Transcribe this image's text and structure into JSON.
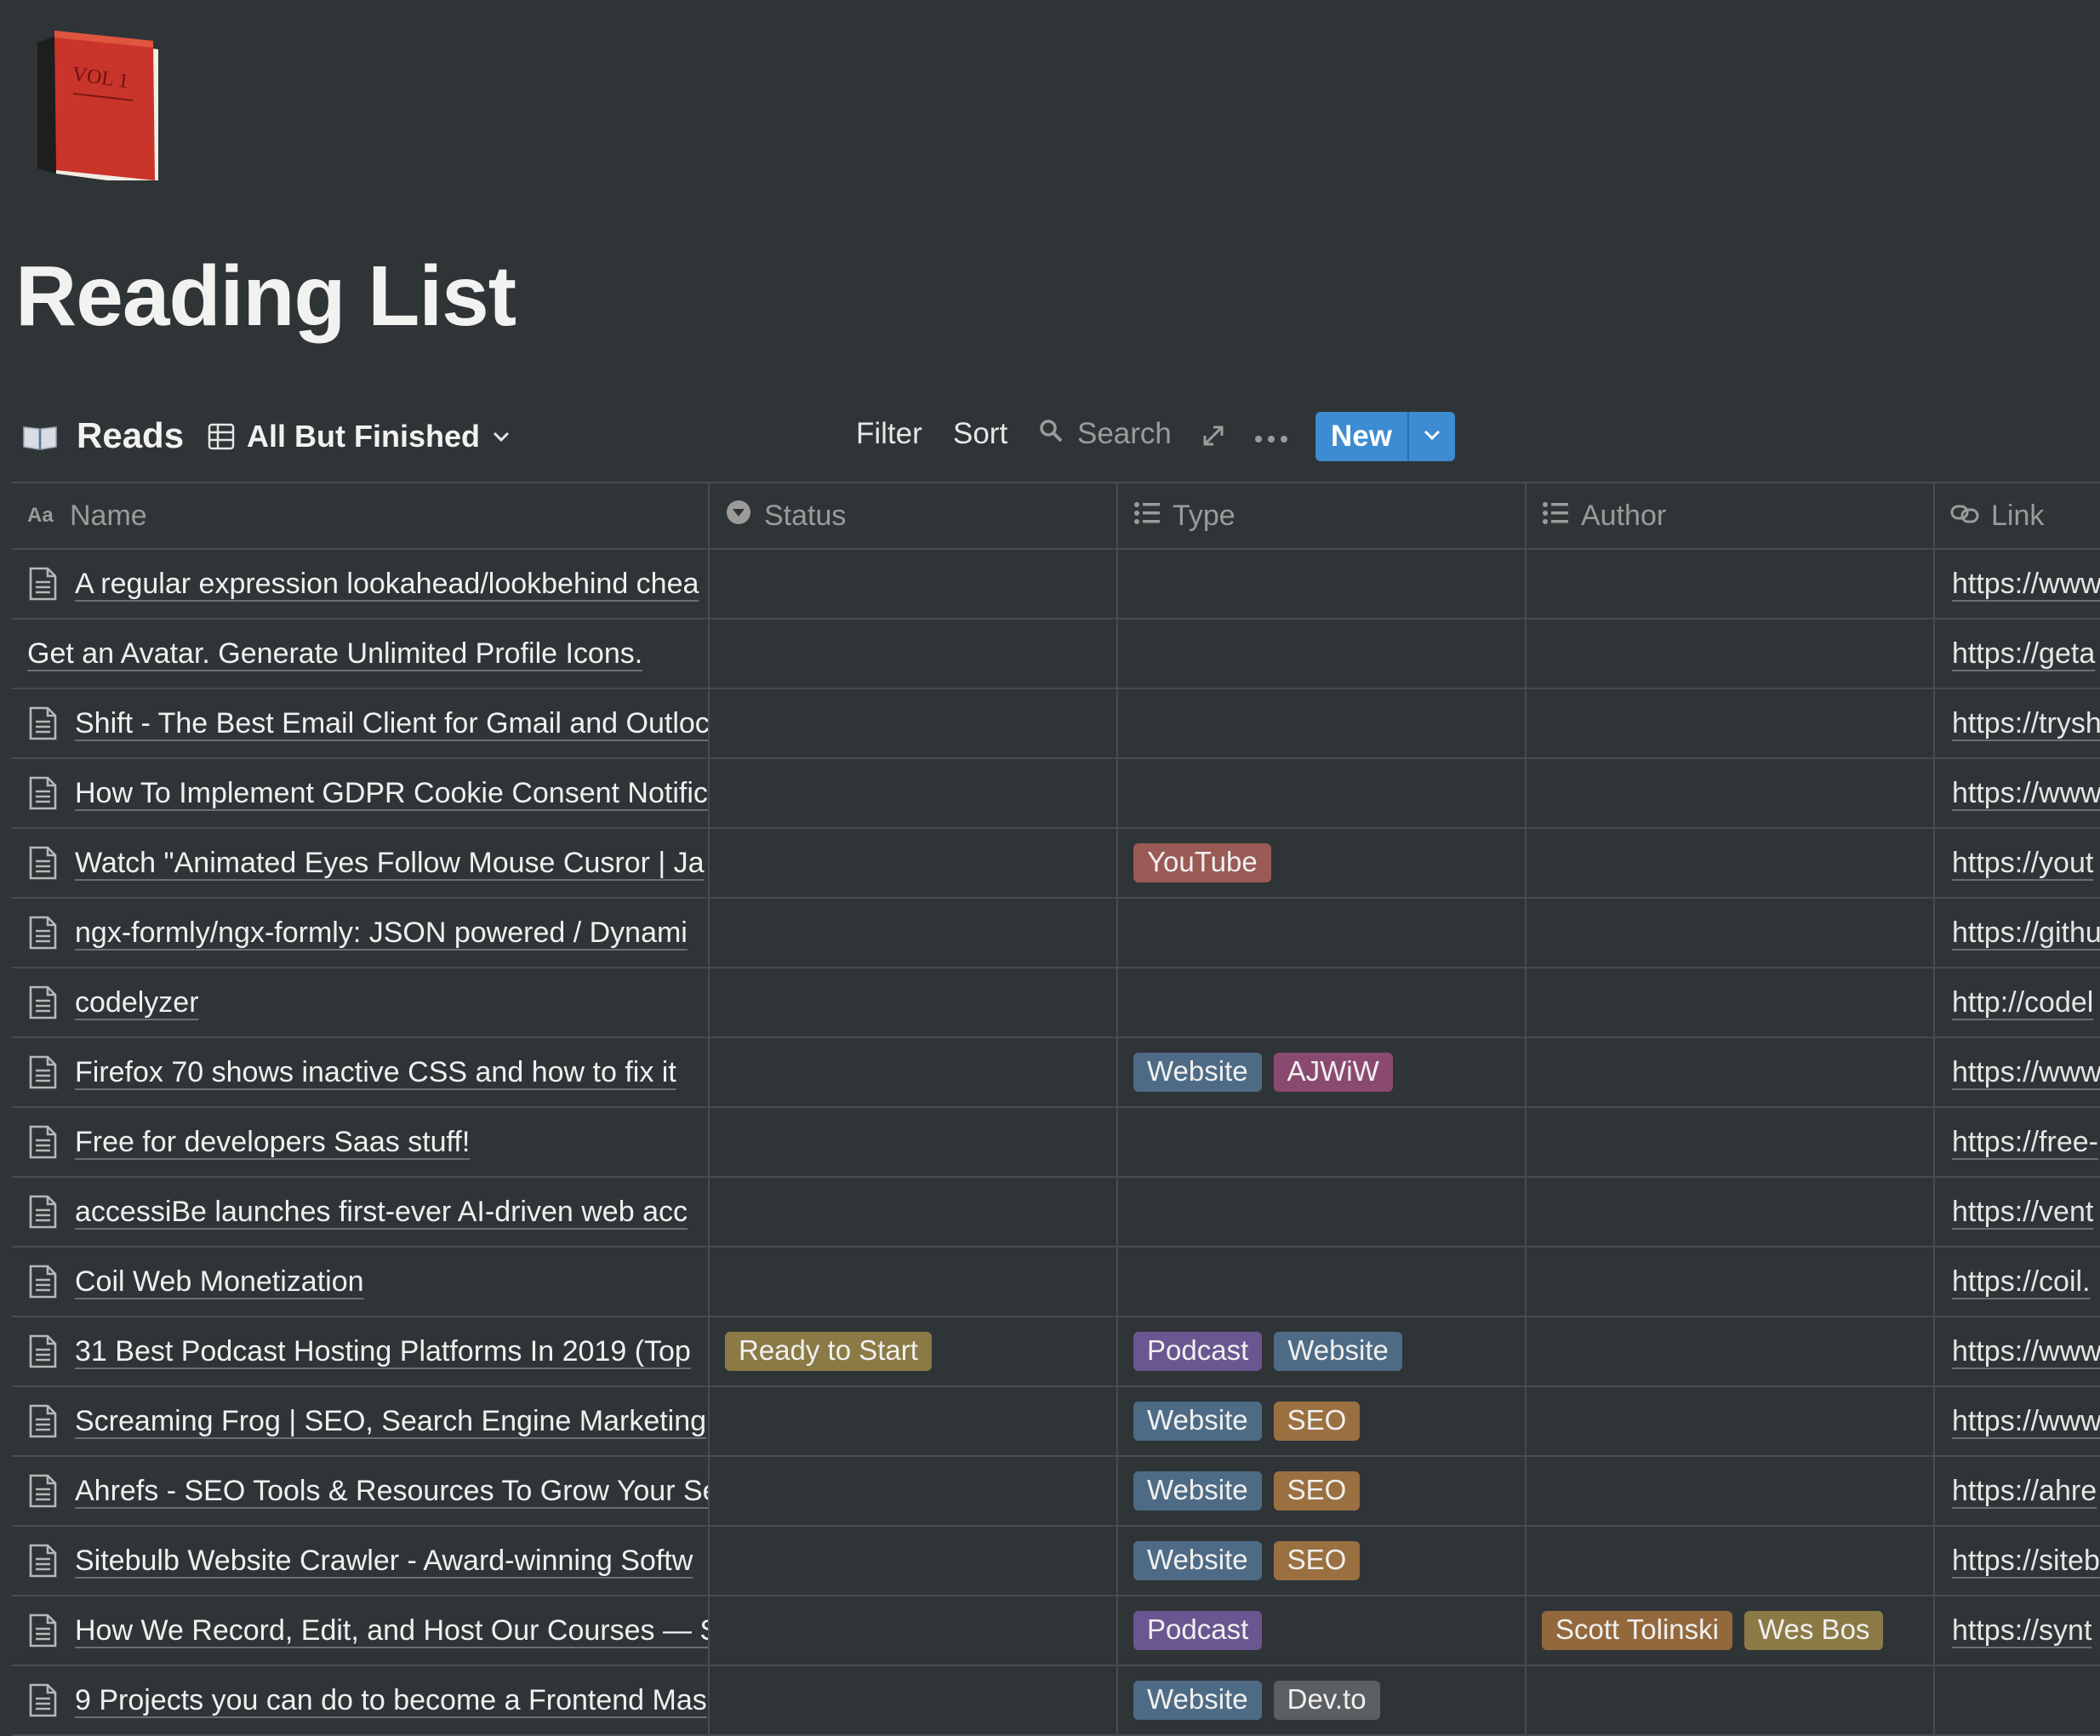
{
  "page": {
    "title": "Reading List",
    "icon": "red-book-vol1-icon",
    "icon_text": "VOL 1"
  },
  "toolbar": {
    "db_title": "Reads",
    "view_name": "All But Finished",
    "filter_label": "Filter",
    "sort_label": "Sort",
    "search_label": "Search",
    "new_label": "New",
    "accent": "#3d8bd0"
  },
  "columns": {
    "name": "Name",
    "status": "Status",
    "type": "Type",
    "author": "Author",
    "link": "Link"
  },
  "rows": [
    {
      "name": "A regular expression lookahead/lookbehind chea",
      "icon": true,
      "status": [],
      "type": [],
      "author": [],
      "link": "https://www"
    },
    {
      "name": "Get an Avatar. Generate Unlimited Profile Icons.",
      "icon": false,
      "status": [],
      "type": [],
      "author": [],
      "link": "https://geta"
    },
    {
      "name": "Shift - The Best Email Client for Gmail and Outloc",
      "icon": true,
      "status": [],
      "type": [],
      "author": [],
      "link": "https://trysh"
    },
    {
      "name": "How To Implement GDPR Cookie Consent Notific",
      "icon": true,
      "status": [],
      "type": [],
      "author": [],
      "link": "https://www"
    },
    {
      "name": "Watch \"Animated Eyes Follow Mouse Cusror | Ja",
      "icon": true,
      "status": [],
      "type": [
        {
          "label": "YouTube",
          "cls": "t-youtube"
        }
      ],
      "author": [],
      "link": "https://yout"
    },
    {
      "name": "ngx-formly/ngx-formly: JSON powered / Dynami",
      "icon": true,
      "status": [],
      "type": [],
      "author": [],
      "link": "https://githu"
    },
    {
      "name": "codelyzer",
      "icon": true,
      "status": [],
      "type": [],
      "author": [],
      "link": "http://codel"
    },
    {
      "name": "Firefox 70 shows inactive CSS and how to fix it",
      "icon": true,
      "status": [],
      "type": [
        {
          "label": "Website",
          "cls": "t-website"
        },
        {
          "label": "AJWiW",
          "cls": "t-ajwiw"
        }
      ],
      "author": [],
      "link": "https://www"
    },
    {
      "name": "Free for developers Saas stuff!",
      "icon": true,
      "status": [],
      "type": [],
      "author": [],
      "link": "https://free-"
    },
    {
      "name": "accessiBe launches first-ever AI-driven web acc",
      "icon": true,
      "status": [],
      "type": [],
      "author": [],
      "link": "https://vent"
    },
    {
      "name": "Coil Web Monetization",
      "icon": true,
      "status": [],
      "type": [],
      "author": [],
      "link": "https://coil."
    },
    {
      "name": "31 Best Podcast Hosting Platforms In 2019 (Top",
      "icon": true,
      "status": [
        {
          "label": "Ready to Start",
          "cls": "t-ready"
        }
      ],
      "type": [
        {
          "label": "Podcast",
          "cls": "t-podcast"
        },
        {
          "label": "Website",
          "cls": "t-website"
        }
      ],
      "author": [],
      "link": "https://www"
    },
    {
      "name": "Screaming Frog | SEO, Search Engine Marketing",
      "icon": true,
      "status": [],
      "type": [
        {
          "label": "Website",
          "cls": "t-website"
        },
        {
          "label": "SEO",
          "cls": "t-seo"
        }
      ],
      "author": [],
      "link": "https://www"
    },
    {
      "name": "Ahrefs - SEO Tools & Resources To Grow Your Se",
      "icon": true,
      "status": [],
      "type": [
        {
          "label": "Website",
          "cls": "t-website"
        },
        {
          "label": "SEO",
          "cls": "t-seo"
        }
      ],
      "author": [],
      "link": "https://ahre"
    },
    {
      "name": "Sitebulb Website Crawler - Award-winning Softw",
      "icon": true,
      "status": [],
      "type": [
        {
          "label": "Website",
          "cls": "t-website"
        },
        {
          "label": "SEO",
          "cls": "t-seo"
        }
      ],
      "author": [],
      "link": "https://siteb"
    },
    {
      "name": "How We Record, Edit, and Host Our Courses — S",
      "icon": true,
      "status": [],
      "type": [
        {
          "label": "Podcast",
          "cls": "t-podcast"
        }
      ],
      "author": [
        {
          "label": "Scott Tolinski",
          "cls": "t-scott"
        },
        {
          "label": "Wes Bos",
          "cls": "t-wes"
        }
      ],
      "link": "https://synt"
    },
    {
      "name": "9 Projects you can do to become a Frontend Mas",
      "icon": true,
      "status": [],
      "type": [
        {
          "label": "Website",
          "cls": "t-website"
        },
        {
          "label": "Dev.to",
          "cls": "t-devto"
        }
      ],
      "author": [],
      "link": ""
    }
  ]
}
